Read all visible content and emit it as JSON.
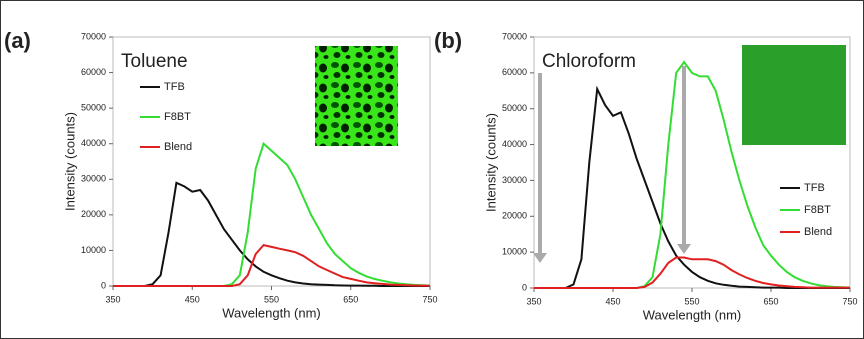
{
  "chart_data": [
    {
      "type": "line",
      "panel_label": "(a)",
      "title": "Toluene",
      "xlabel": "Wavelength (nm)",
      "ylabel": "Intensity (counts)",
      "xlim": [
        350,
        750
      ],
      "xticks": [
        350,
        450,
        550,
        650,
        750
      ],
      "ylim": [
        0,
        70000
      ],
      "yticks": [
        0,
        10000,
        20000,
        30000,
        40000,
        50000,
        60000,
        70000
      ],
      "legend": "upper left",
      "x": [
        350,
        360,
        370,
        380,
        390,
        400,
        410,
        420,
        430,
        440,
        450,
        460,
        470,
        480,
        490,
        500,
        510,
        520,
        530,
        540,
        550,
        560,
        570,
        580,
        590,
        600,
        610,
        620,
        630,
        640,
        650,
        660,
        670,
        680,
        690,
        700,
        710,
        720,
        730,
        740,
        750
      ],
      "series": [
        {
          "name": "TFB",
          "color": "#111111",
          "values": [
            0,
            0,
            0,
            0,
            0,
            500,
            3000,
            15000,
            29000,
            28000,
            26500,
            27000,
            24000,
            20000,
            16000,
            13000,
            10000,
            7500,
            5500,
            4000,
            3000,
            2200,
            1500,
            1000,
            700,
            500,
            400,
            300,
            200,
            150,
            100,
            100,
            50,
            50,
            0,
            0,
            0,
            0,
            0,
            0,
            0
          ]
        },
        {
          "name": "F8BT",
          "color": "#33dd33",
          "values": [
            0,
            0,
            0,
            0,
            0,
            0,
            0,
            0,
            0,
            0,
            0,
            0,
            0,
            0,
            0,
            500,
            3000,
            15000,
            33000,
            40000,
            38000,
            36000,
            34000,
            30000,
            25000,
            20000,
            16000,
            12000,
            9000,
            7000,
            5000,
            3700,
            2700,
            2000,
            1500,
            1000,
            700,
            500,
            300,
            200,
            100
          ]
        },
        {
          "name": "Blend",
          "color": "#e02020",
          "values": [
            0,
            0,
            0,
            0,
            0,
            0,
            0,
            0,
            0,
            0,
            0,
            0,
            0,
            0,
            0,
            0,
            500,
            3000,
            9000,
            11500,
            11000,
            10500,
            10000,
            9500,
            8500,
            7000,
            5500,
            4500,
            3500,
            2500,
            2000,
            1500,
            1000,
            800,
            600,
            400,
            300,
            200,
            150,
            100,
            50
          ]
        }
      ]
    },
    {
      "type": "line",
      "panel_label": "(b)",
      "title": "Chloroform",
      "xlabel": "Wavelength (nm)",
      "ylabel": "Intensity (counts)",
      "xlim": [
        350,
        750
      ],
      "xticks": [
        350,
        450,
        550,
        650,
        750
      ],
      "ylim": [
        0,
        70000
      ],
      "yticks": [
        0,
        10000,
        20000,
        30000,
        40000,
        50000,
        60000,
        70000
      ],
      "legend": "center right",
      "x": [
        350,
        360,
        370,
        380,
        390,
        400,
        410,
        420,
        430,
        440,
        450,
        460,
        470,
        480,
        490,
        500,
        510,
        520,
        530,
        540,
        550,
        560,
        570,
        580,
        590,
        600,
        610,
        620,
        630,
        640,
        650,
        660,
        670,
        680,
        690,
        700,
        710,
        720,
        730,
        740,
        750
      ],
      "series": [
        {
          "name": "TFB",
          "color": "#111111",
          "values": [
            0,
            0,
            0,
            0,
            0,
            1000,
            8000,
            35000,
            55500,
            51000,
            48000,
            49000,
            43000,
            36000,
            30000,
            24000,
            18000,
            13000,
            9000,
            6500,
            4500,
            3000,
            2000,
            1300,
            900,
            600,
            400,
            300,
            200,
            100,
            100,
            100,
            0,
            0,
            0,
            0,
            0,
            0,
            0,
            0,
            0
          ]
        },
        {
          "name": "F8BT",
          "color": "#33dd33",
          "values": [
            0,
            0,
            0,
            0,
            0,
            0,
            0,
            0,
            0,
            0,
            0,
            0,
            0,
            0,
            500,
            3000,
            15000,
            40000,
            60000,
            63000,
            60000,
            59000,
            59000,
            55000,
            47000,
            38000,
            30000,
            23000,
            17000,
            12000,
            9000,
            6500,
            4500,
            3000,
            2000,
            1300,
            800,
            500,
            300,
            200,
            100
          ]
        },
        {
          "name": "Blend",
          "color": "#e02020",
          "values": [
            0,
            0,
            0,
            0,
            0,
            0,
            0,
            0,
            0,
            0,
            0,
            0,
            0,
            0,
            300,
            1500,
            4000,
            7000,
            8500,
            8500,
            8000,
            8000,
            8000,
            7500,
            6500,
            5000,
            3800,
            2800,
            2000,
            1400,
            1000,
            700,
            500,
            300,
            200,
            100,
            100,
            100,
            100,
            100,
            100
          ]
        }
      ]
    }
  ]
}
